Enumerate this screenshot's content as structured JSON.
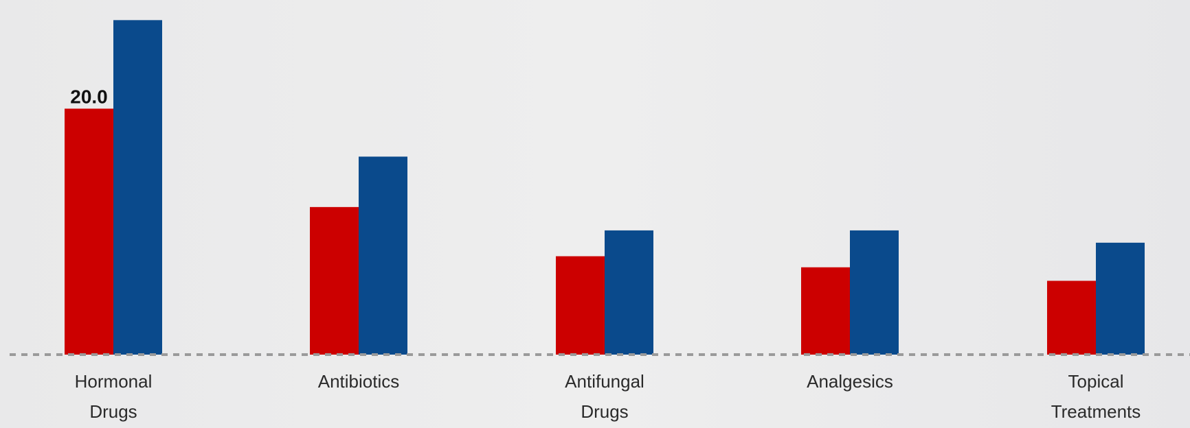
{
  "chart_data": {
    "type": "bar",
    "categories": [
      [
        "Hormonal",
        "Drugs"
      ],
      [
        "Antibiotics"
      ],
      [
        "Antifungal",
        "Drugs"
      ],
      [
        "Analgesics"
      ],
      [
        "Topical",
        "Treatments"
      ]
    ],
    "series": [
      {
        "color": "#cc0000",
        "values": [
          20.0,
          12.0,
          8.0,
          7.1,
          6.0
        ]
      },
      {
        "color": "#0a4a8c",
        "values": [
          27.2,
          16.1,
          10.1,
          10.1,
          9.1
        ]
      }
    ],
    "data_labels": [
      {
        "series": 0,
        "index": 0,
        "text": "20.0"
      }
    ],
    "ylim": [
      0,
      28
    ],
    "xlabel": "",
    "ylabel": "",
    "grid": false,
    "legend": "none",
    "baseline": "dashed"
  }
}
